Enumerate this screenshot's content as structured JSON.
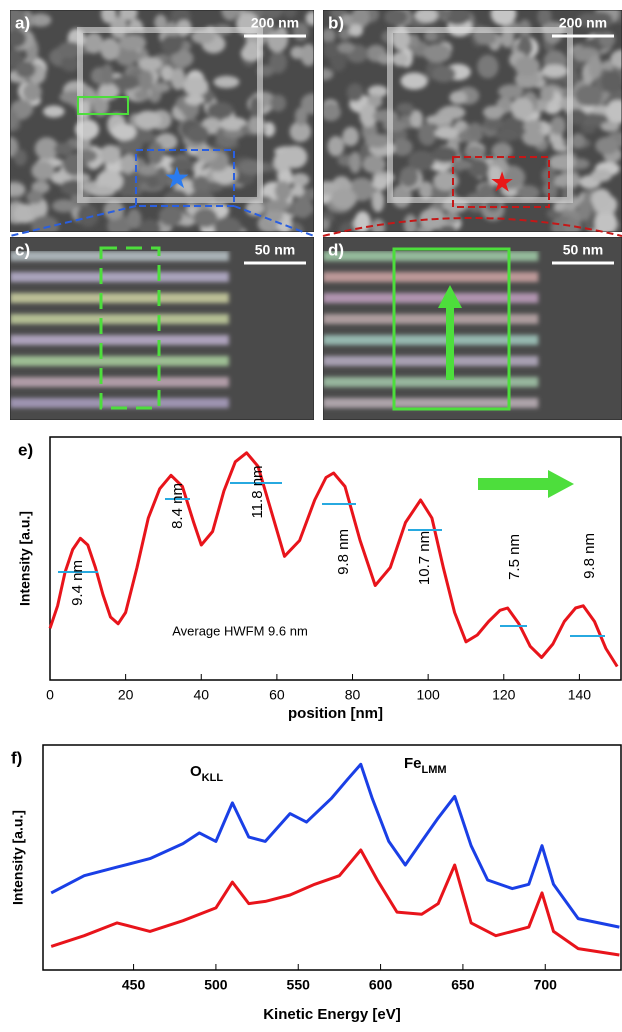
{
  "panels": [
    {
      "label": "a)",
      "scale": "200 nm"
    },
    {
      "label": "b)",
      "scale": "200 nm"
    },
    {
      "label": "c)",
      "scale": "50 nm"
    },
    {
      "label": "d)",
      "scale": "50 nm"
    }
  ],
  "chart_data": [
    {
      "type": "line",
      "label": "e)",
      "xlabel": "position [nm]",
      "ylabel": "Intensity [a.u.]",
      "color": "#e8141b",
      "x": [
        0,
        2,
        4,
        6,
        8,
        10,
        12,
        14,
        16,
        18,
        20,
        23,
        26,
        29,
        32,
        35,
        38,
        40,
        43,
        46,
        49,
        52,
        55,
        58,
        62,
        66,
        70,
        73,
        75,
        78,
        82,
        86,
        90,
        94,
        98,
        101,
        104,
        107,
        110,
        113,
        116,
        119,
        121,
        124,
        127,
        130,
        133,
        136,
        139,
        141,
        144,
        147,
        150
      ],
      "values": [
        0.23,
        0.33,
        0.48,
        0.58,
        0.63,
        0.6,
        0.5,
        0.38,
        0.28,
        0.25,
        0.3,
        0.5,
        0.72,
        0.85,
        0.91,
        0.86,
        0.7,
        0.6,
        0.66,
        0.84,
        0.97,
        1.01,
        0.95,
        0.78,
        0.55,
        0.62,
        0.8,
        0.9,
        0.92,
        0.86,
        0.62,
        0.42,
        0.5,
        0.7,
        0.8,
        0.72,
        0.5,
        0.3,
        0.17,
        0.2,
        0.26,
        0.31,
        0.32,
        0.25,
        0.15,
        0.1,
        0.16,
        0.26,
        0.32,
        0.33,
        0.26,
        0.14,
        0.06
      ],
      "xlim": [
        0,
        151
      ],
      "ylim": [
        0,
        1.08
      ],
      "xticks": [
        0,
        20,
        40,
        60,
        80,
        100,
        120,
        140
      ],
      "annotations": [
        "9.4 nm",
        "8.4 nm",
        "11.8 nm",
        "9.8 nm",
        "10.7 nm",
        "7.5 nm",
        "9.8 nm",
        "Average HWFM 9.6 nm"
      ]
    },
    {
      "type": "line",
      "label": "f)",
      "xlabel": "Kinetic Energy [eV]",
      "ylabel": "Intensity [a.u.]",
      "series": [
        {
          "color": "#1a3fe6",
          "x": [
            400,
            420,
            440,
            460,
            480,
            490,
            500,
            510,
            520,
            530,
            545,
            555,
            570,
            580,
            588,
            595,
            605,
            615,
            625,
            635,
            645,
            655,
            665,
            680,
            690,
            698,
            705,
            720,
            745
          ],
          "values": [
            0.36,
            0.44,
            0.48,
            0.52,
            0.59,
            0.64,
            0.6,
            0.78,
            0.62,
            0.6,
            0.73,
            0.69,
            0.8,
            0.89,
            0.96,
            0.8,
            0.6,
            0.49,
            0.6,
            0.71,
            0.81,
            0.58,
            0.42,
            0.38,
            0.4,
            0.58,
            0.4,
            0.24,
            0.2
          ]
        },
        {
          "color": "#e8141b",
          "x": [
            400,
            420,
            440,
            460,
            480,
            500,
            510,
            520,
            530,
            545,
            560,
            575,
            588,
            598,
            610,
            625,
            635,
            645,
            655,
            670,
            690,
            698,
            705,
            720,
            745
          ],
          "values": [
            0.11,
            0.16,
            0.22,
            0.18,
            0.23,
            0.29,
            0.41,
            0.31,
            0.32,
            0.35,
            0.4,
            0.44,
            0.56,
            0.42,
            0.27,
            0.26,
            0.31,
            0.49,
            0.22,
            0.16,
            0.2,
            0.36,
            0.18,
            0.1,
            0.07
          ]
        }
      ],
      "xlim": [
        395,
        746
      ],
      "ylim": [
        0,
        1.05
      ],
      "xticks": [
        450,
        500,
        550,
        600,
        650,
        700
      ],
      "annotations": [
        {
          "text": "O",
          "sub": "KLL"
        },
        {
          "text": "Fe",
          "sub": "LMM"
        }
      ]
    }
  ]
}
